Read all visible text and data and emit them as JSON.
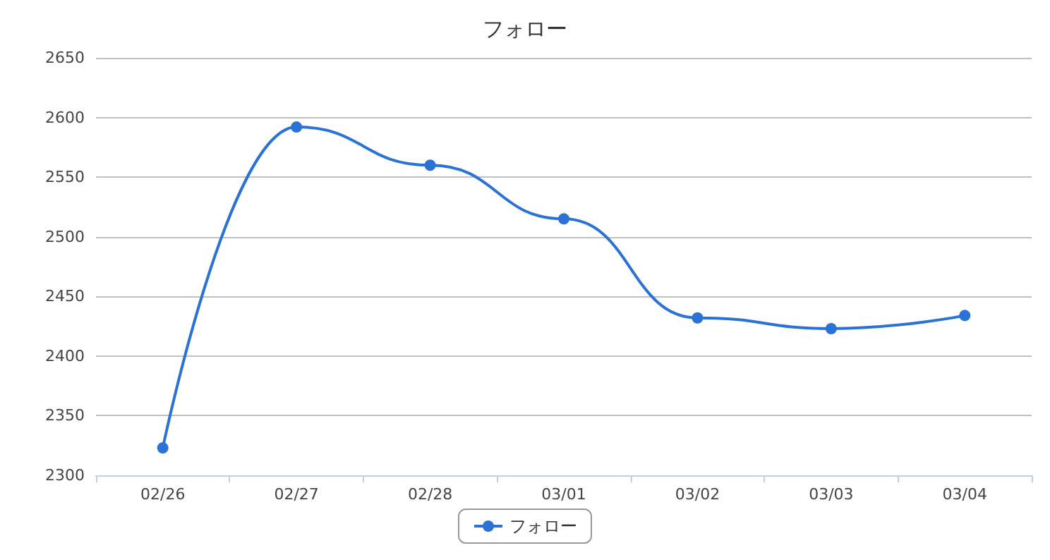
{
  "chart_data": {
    "type": "line",
    "title": "フォロー",
    "categories": [
      "02/26",
      "02/27",
      "02/28",
      "03/01",
      "03/02",
      "03/03",
      "03/04"
    ],
    "series": [
      {
        "name": "フォロー",
        "color": "#2a72d5",
        "values": [
          2323,
          2592,
          2560,
          2515,
          2432,
          2423,
          2434
        ]
      }
    ],
    "ylim": [
      2300,
      2650
    ],
    "yticks": [
      2300,
      2350,
      2400,
      2450,
      2500,
      2550,
      2600,
      2650
    ],
    "grid": "y",
    "legend": "bottom",
    "marker": "circle"
  }
}
